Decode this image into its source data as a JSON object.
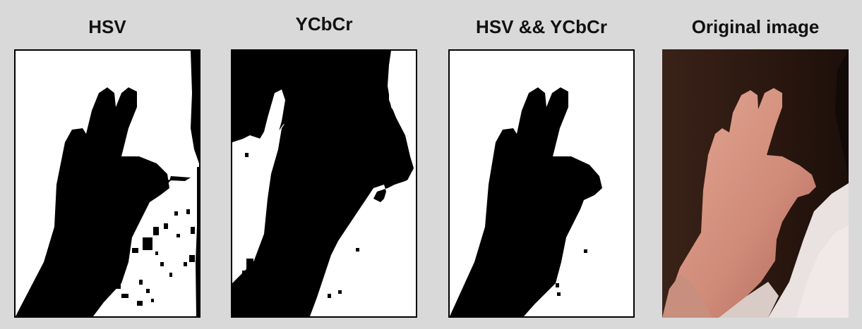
{
  "panels": [
    {
      "title": "HSV"
    },
    {
      "title": "YCbCr"
    },
    {
      "title": "HSV && YCbCr"
    },
    {
      "title": "Original image"
    }
  ],
  "colors": {
    "background": "#d9d9d9",
    "mask_foreground": "#000000",
    "mask_background": "#ffffff",
    "skin": "#d79a86",
    "wall": "#2a1a14",
    "shirt": "#e9e2e0"
  }
}
